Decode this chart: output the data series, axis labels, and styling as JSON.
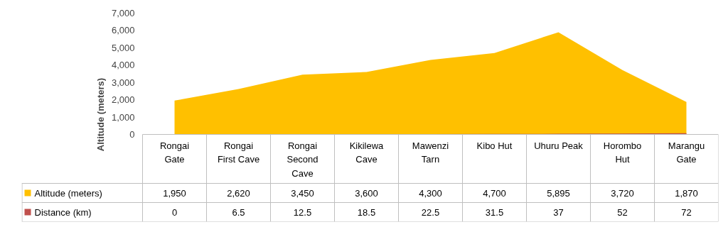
{
  "chart_data": {
    "type": "area",
    "ylabel": "Altitude (meters)",
    "categories": [
      "Rongai Gate",
      "Rongai First Cave",
      "Rongai Second Cave",
      "Kikilewa Cave",
      "Mawenzi Tarn",
      "Kibo Hut",
      "Uhuru Peak",
      "Horombo Hut",
      "Marangu Gate"
    ],
    "series": [
      {
        "name": "Altitude (meters)",
        "color": "#ffc000",
        "values": [
          1950,
          2620,
          3450,
          3600,
          4300,
          4700,
          5895,
          3720,
          1870
        ],
        "value_labels": [
          "1,950",
          "2,620",
          "3,450",
          "3,600",
          "4,300",
          "4,700",
          "5,895",
          "3,720",
          "1,870"
        ]
      },
      {
        "name": "Distance (km)",
        "color": "#c0504d",
        "values": [
          0,
          6.5,
          12.5,
          18.5,
          22.5,
          31.5,
          37,
          52,
          72
        ],
        "value_labels": [
          "0",
          "6.5",
          "12.5",
          "18.5",
          "22.5",
          "31.5",
          "37",
          "52",
          "72"
        ]
      }
    ],
    "ylim": [
      0,
      7000
    ],
    "yticks": [
      {
        "value": 0,
        "label": "0"
      },
      {
        "value": 1000,
        "label": "1,000"
      },
      {
        "value": 2000,
        "label": "2,000"
      },
      {
        "value": 3000,
        "label": "3,000"
      },
      {
        "value": 4000,
        "label": "4,000"
      },
      {
        "value": 5000,
        "label": "5,000"
      },
      {
        "value": 6000,
        "label": "6,000"
      },
      {
        "value": 7000,
        "label": "7,000"
      }
    ],
    "legend": "bottom",
    "grid": false
  }
}
